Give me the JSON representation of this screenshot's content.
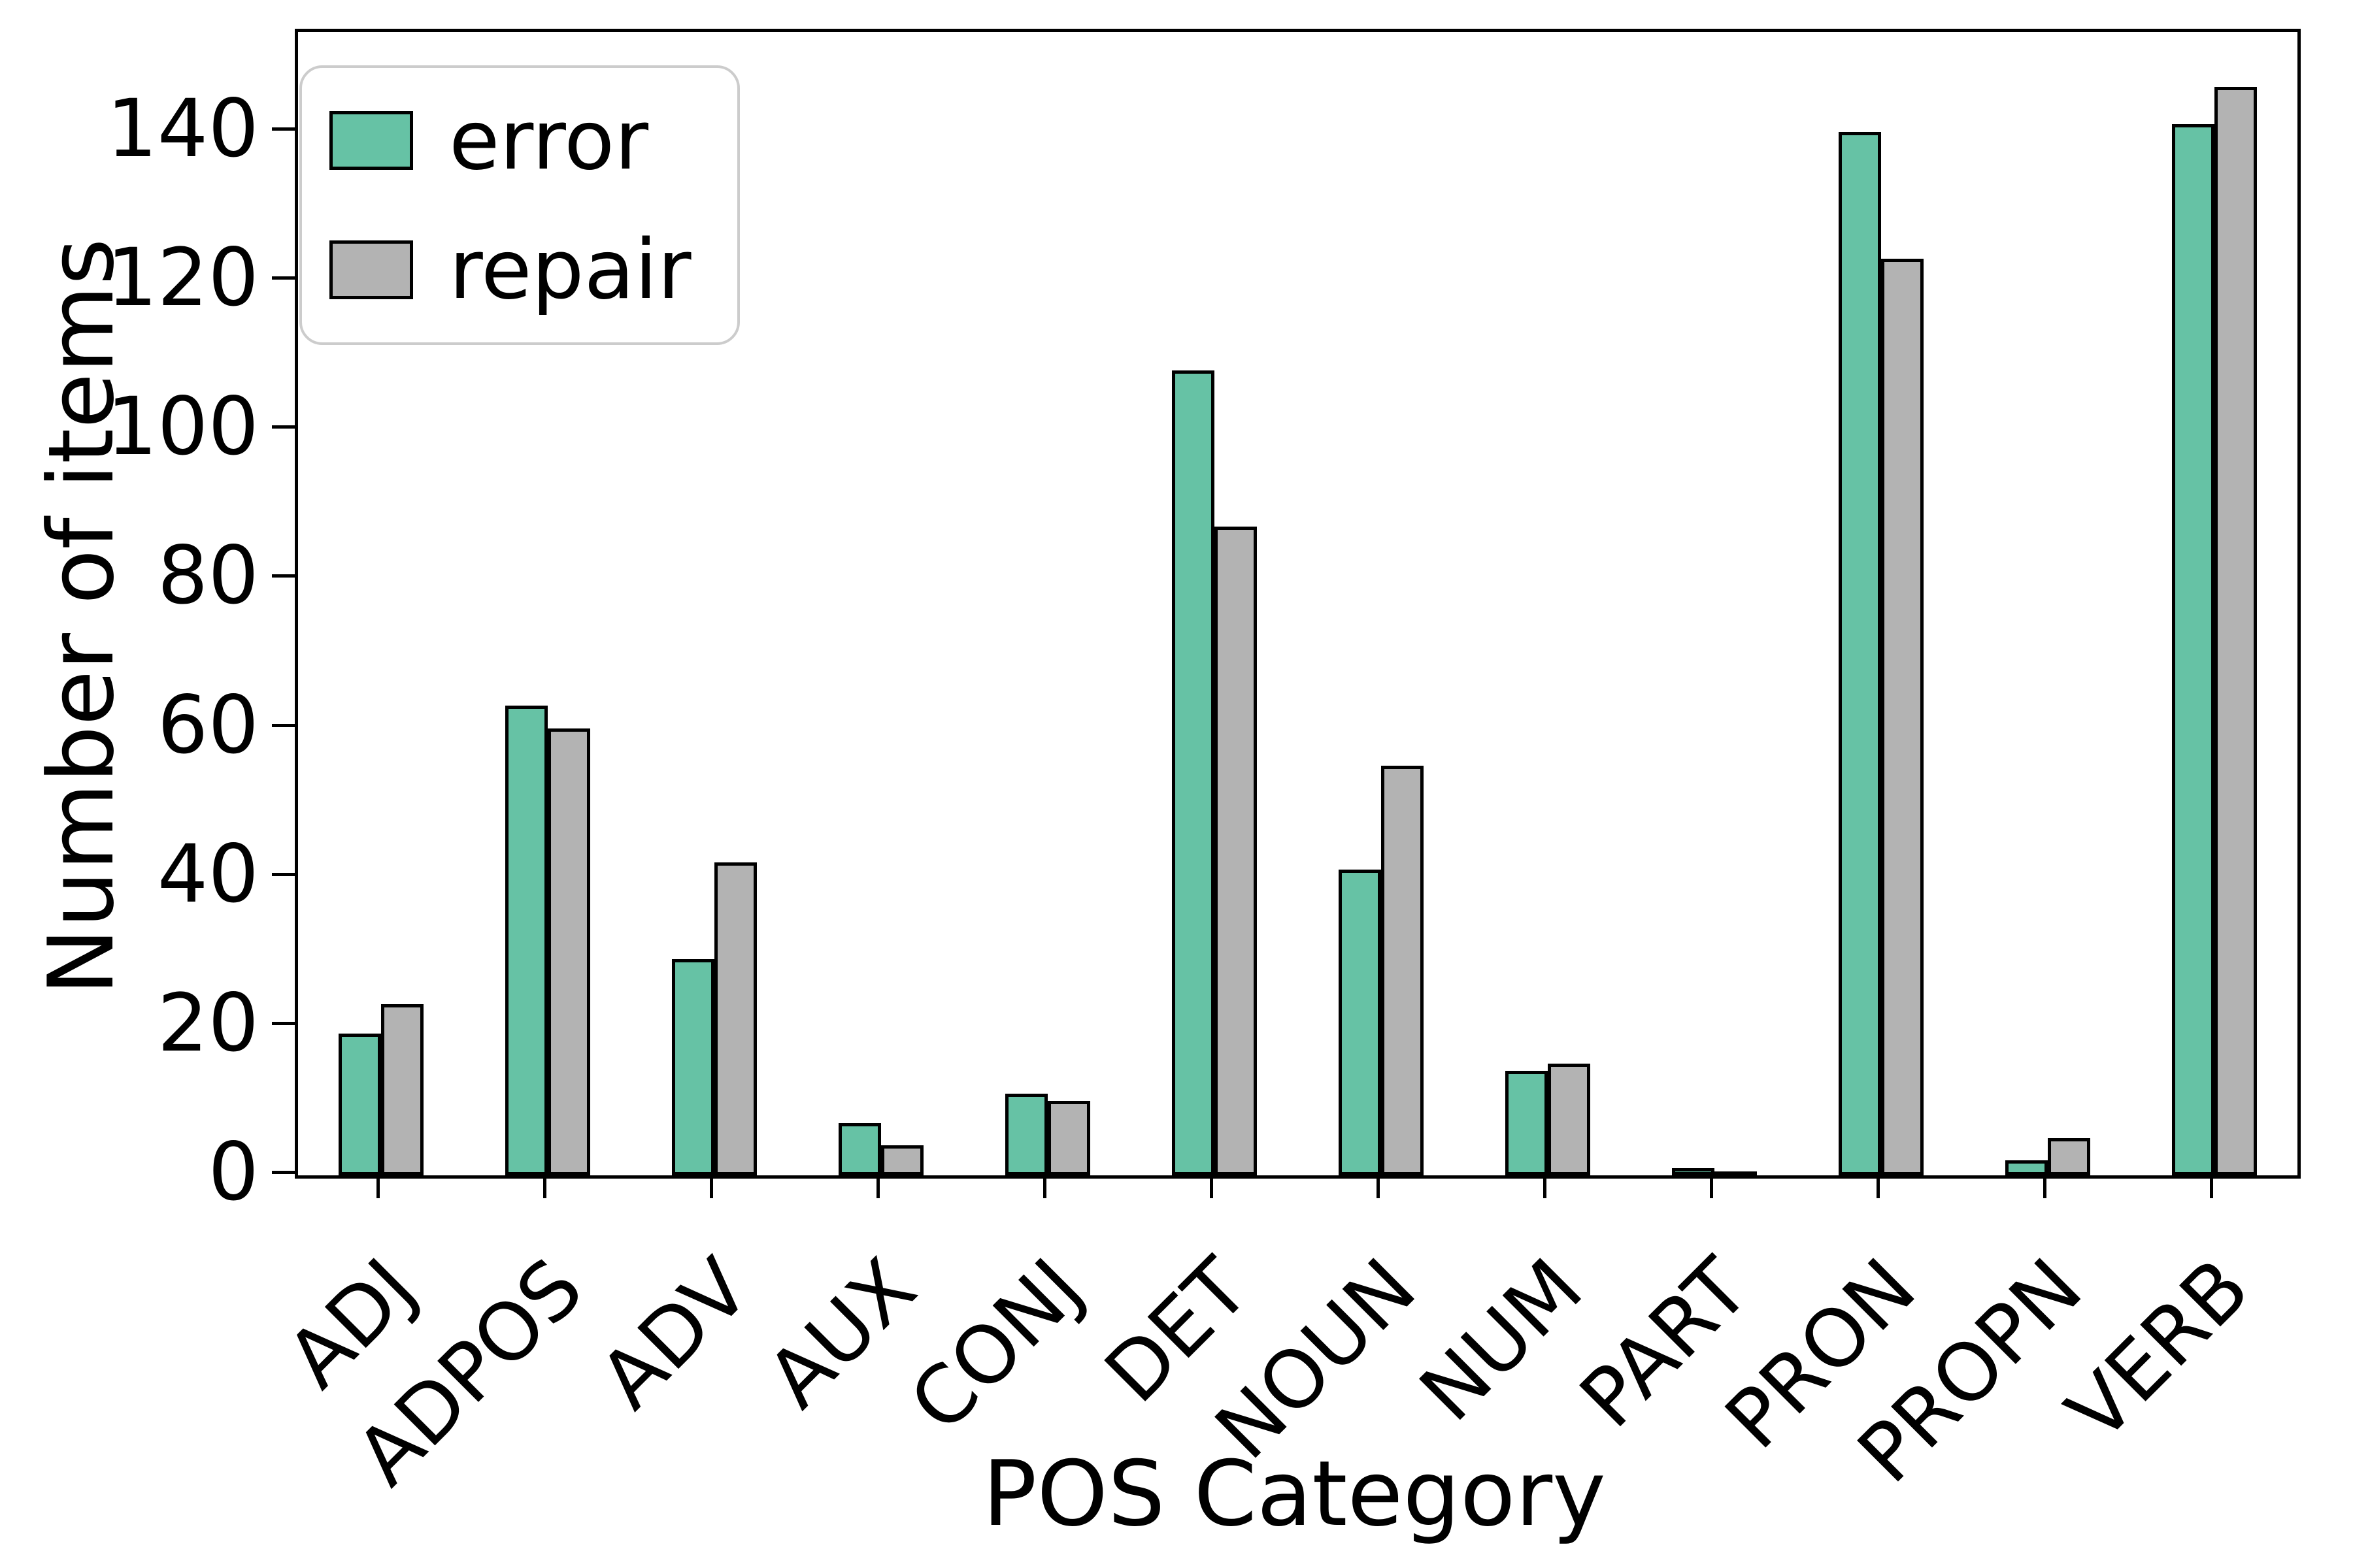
{
  "chart_data": {
    "type": "bar",
    "title": "",
    "xlabel": "POS Category",
    "ylabel": "Number of items",
    "categories": [
      "ADJ",
      "ADPOS",
      "ADV",
      "AUX",
      "CONJ",
      "DET",
      "NOUN",
      "NUM",
      "PART",
      "PRON",
      "PROPN",
      "VERB"
    ],
    "series": [
      {
        "name": "error",
        "color": "#66c2a5",
        "values": [
          19,
          63,
          29,
          7,
          11,
          108,
          41,
          14,
          1,
          140,
          2,
          141
        ]
      },
      {
        "name": "repair",
        "color": "#b3b3b3",
        "values": [
          23,
          60,
          42,
          4,
          10,
          87,
          55,
          15,
          0,
          123,
          5,
          146
        ]
      }
    ],
    "yticks": [
      0,
      20,
      40,
      60,
      80,
      100,
      120,
      140
    ],
    "ylim": [
      0,
      153.4
    ],
    "bar_edge_color": "#000000",
    "axis_color": "#000000",
    "legend_border_color": "#cccccc",
    "legend_position": "upper left",
    "grid": false
  }
}
